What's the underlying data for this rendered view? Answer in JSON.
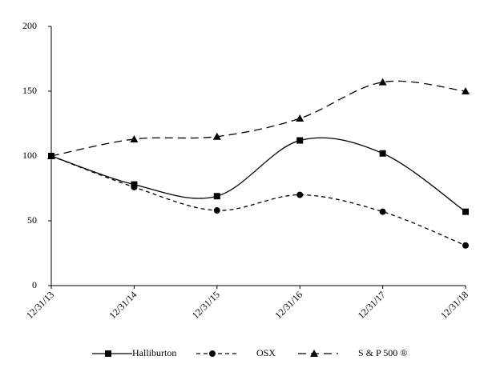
{
  "chart_data": {
    "type": "line",
    "categories": [
      "12/31/13",
      "12/31/14",
      "12/31/15",
      "12/31/16",
      "12/31/17",
      "12/31/18"
    ],
    "series": [
      {
        "name": "Halliburton",
        "color": "#000000",
        "dash": "solid",
        "marker": "square",
        "values": [
          100,
          78,
          69,
          112,
          102,
          57
        ]
      },
      {
        "name": "OSX",
        "color": "#000000",
        "dash": "short",
        "marker": "circle",
        "values": [
          100,
          76,
          58,
          70,
          57,
          31
        ]
      },
      {
        "name": "S & P 500 ®",
        "color": "#000000",
        "dash": "long",
        "marker": "triangle",
        "values": [
          100,
          113,
          115,
          129,
          157,
          150
        ]
      }
    ],
    "ylim": [
      0,
      200
    ],
    "yticks": [
      0,
      50,
      100,
      150,
      200
    ],
    "smooth": true,
    "legend": "bottom"
  }
}
